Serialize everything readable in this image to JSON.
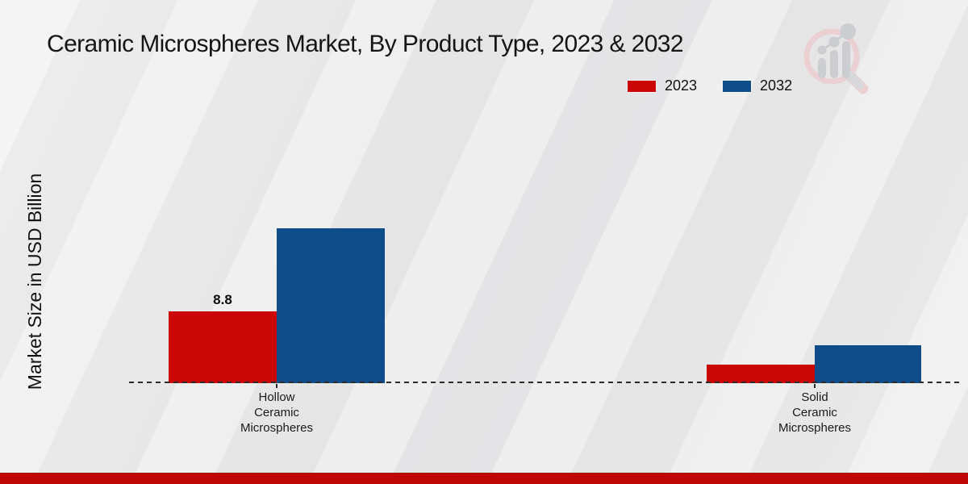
{
  "title": "Ceramic Microspheres Market, By Product Type, 2023 & 2032",
  "y_axis_label": "Market Size in USD Billion",
  "legend": [
    {
      "label": "2023",
      "color": "#cb0606"
    },
    {
      "label": "2032",
      "color": "#0e4c8a"
    }
  ],
  "colors": {
    "bar_2023": "#cb0606",
    "bar_2032": "#0e4c8a",
    "footer_strip": "#c00707",
    "baseline": "#2b2b2b",
    "logo_pink": "#ecccd0",
    "logo_gray": "#c8c9cc"
  },
  "chart_data": {
    "type": "bar",
    "categories": [
      "Hollow\nCeramic\nMicrospheres",
      "Solid\nCeramic\nMicrospheres"
    ],
    "series": [
      {
        "name": "2023",
        "color": "#cb0606",
        "values": [
          8.8,
          2.3
        ]
      },
      {
        "name": "2032",
        "color": "#0e4c8a",
        "values": [
          19.0,
          4.6
        ]
      }
    ],
    "annotations": [
      {
        "text": "8.8",
        "series": "2023",
        "category": "Hollow\nCeramic\nMicrospheres"
      }
    ],
    "title": "Ceramic Microspheres Market, By Product Type, 2023 & 2032",
    "xlabel": "",
    "ylabel": "Market Size in USD Billion",
    "ylim": [
      0,
      20
    ],
    "grid": false,
    "legend_position": "top-right",
    "baseline_style": "dashed"
  }
}
